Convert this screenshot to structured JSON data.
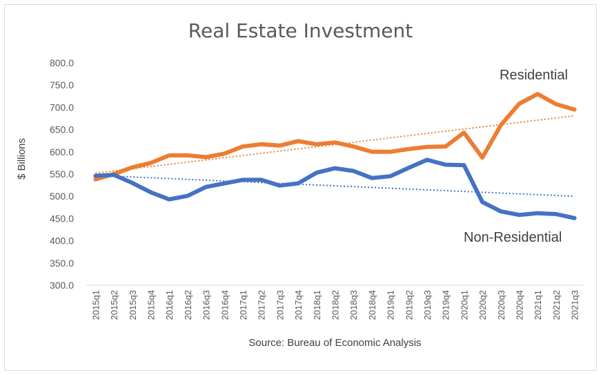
{
  "chart_data": {
    "type": "line",
    "title": "Real Estate Investment",
    "xlabel": "Source: Bureau of Economic Analysis",
    "ylabel": "$ Billions",
    "ylim": [
      300,
      800
    ],
    "ytick_step": 50,
    "grid": false,
    "categories": [
      "2015q1",
      "2015q2",
      "2015q3",
      "2015q4",
      "2016q1",
      "2016q2",
      "2016q3",
      "2016q4",
      "2017q1",
      "2017q2",
      "2017q3",
      "2017q4",
      "2018q1",
      "2018q2",
      "2018q3",
      "2018q4",
      "2019q1",
      "2019q2",
      "2019q3",
      "2019q4",
      "2020q1",
      "2020q2",
      "2020q3",
      "2020q4",
      "2021q1",
      "2021q2",
      "2021q3"
    ],
    "series": [
      {
        "name": "Residential",
        "color": "#ED7D31",
        "trendline": true,
        "trend_start": 552,
        "trend_end": 681,
        "values": [
          538,
          550,
          565,
          575,
          592,
          592,
          588,
          596,
          612,
          617,
          614,
          624,
          617,
          621,
          612,
          600,
          600,
          606,
          611,
          612,
          643,
          587,
          660,
          708,
          730,
          707,
          695
        ]
      },
      {
        "name": "Non-Residential",
        "color": "#4472C4",
        "trendline": true,
        "trend_start": 547,
        "trend_end": 500,
        "values": [
          546,
          548,
          530,
          509,
          493,
          501,
          521,
          529,
          537,
          537,
          524,
          529,
          553,
          563,
          557,
          541,
          545,
          564,
          582,
          571,
          570,
          487,
          466,
          458,
          462,
          460,
          451
        ]
      }
    ]
  }
}
